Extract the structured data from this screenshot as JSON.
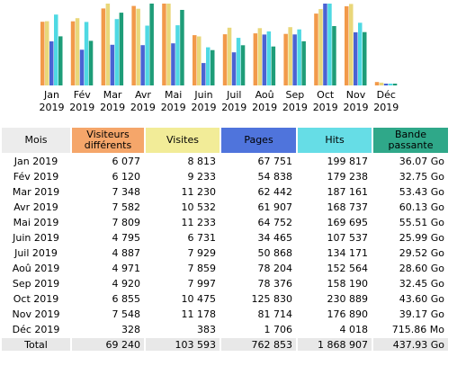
{
  "chart_data": {
    "type": "bar",
    "categories": [
      {
        "month": "Jan",
        "year": "2019"
      },
      {
        "month": "Fév",
        "year": "2019"
      },
      {
        "month": "Mar",
        "year": "2019"
      },
      {
        "month": "Avr",
        "year": "2019"
      },
      {
        "month": "Mai",
        "year": "2019"
      },
      {
        "month": "Juin",
        "year": "2019"
      },
      {
        "month": "Juil",
        "year": "2019"
      },
      {
        "month": "Aoû",
        "year": "2019"
      },
      {
        "month": "Sep",
        "year": "2019"
      },
      {
        "month": "Oct",
        "year": "2019"
      },
      {
        "month": "Nov",
        "year": "2019"
      },
      {
        "month": "Déc",
        "year": "2019"
      }
    ],
    "series": [
      {
        "color": "#f29a4a",
        "values": [
          6077,
          6120,
          7348,
          7582,
          7809,
          4795,
          4887,
          4971,
          4920,
          6855,
          7548,
          328
        ]
      },
      {
        "color": "#e9d77a",
        "values": [
          8813,
          9233,
          11230,
          10532,
          11233,
          6731,
          7929,
          7859,
          7997,
          10475,
          11178,
          383
        ]
      },
      {
        "color": "#4a63d3",
        "values": [
          67751,
          54838,
          62442,
          61907,
          64752,
          34465,
          50868,
          78204,
          78376,
          125830,
          81714,
          1706
        ]
      },
      {
        "color": "#4fd9e3",
        "values": [
          199817,
          179238,
          187161,
          168737,
          169695,
          107537,
          134171,
          152564,
          158190,
          230889,
          176890,
          4018
        ]
      },
      {
        "color": "#1e9d78",
        "values": [
          36.07,
          32.75,
          53.43,
          60.13,
          55.51,
          25.99,
          29.52,
          28.6,
          32.45,
          43.6,
          39.17,
          0.7
        ]
      }
    ]
  },
  "table": {
    "headers": {
      "mois": "Mois",
      "visiteurs": [
        "Visiteurs",
        "différents"
      ],
      "visites": "Visites",
      "pages": "Pages",
      "hits": "Hits",
      "bande": [
        "Bande",
        "passante"
      ]
    },
    "header_colors": {
      "mois": "#ececec",
      "visiteurs": "#f5a66a",
      "visites": "#f2ec98",
      "pages": "#4f74dc",
      "hits": "#66dde6",
      "bande": "#2fa889"
    },
    "rows": [
      {
        "mois": "Jan 2019",
        "visiteurs": "6 077",
        "visites": "8 813",
        "pages": "67 751",
        "hits": "199 817",
        "bande": "36.07 Go"
      },
      {
        "mois": "Fév 2019",
        "visiteurs": "6 120",
        "visites": "9 233",
        "pages": "54 838",
        "hits": "179 238",
        "bande": "32.75 Go"
      },
      {
        "mois": "Mar 2019",
        "visiteurs": "7 348",
        "visites": "11 230",
        "pages": "62 442",
        "hits": "187 161",
        "bande": "53.43 Go"
      },
      {
        "mois": "Avr 2019",
        "visiteurs": "7 582",
        "visites": "10 532",
        "pages": "61 907",
        "hits": "168 737",
        "bande": "60.13 Go"
      },
      {
        "mois": "Mai 2019",
        "visiteurs": "7 809",
        "visites": "11 233",
        "pages": "64 752",
        "hits": "169 695",
        "bande": "55.51 Go"
      },
      {
        "mois": "Juin 2019",
        "visiteurs": "4 795",
        "visites": "6 731",
        "pages": "34 465",
        "hits": "107 537",
        "bande": "25.99 Go"
      },
      {
        "mois": "Juil 2019",
        "visiteurs": "4 887",
        "visites": "7 929",
        "pages": "50 868",
        "hits": "134 171",
        "bande": "29.52 Go"
      },
      {
        "mois": "Aoû 2019",
        "visiteurs": "4 971",
        "visites": "7 859",
        "pages": "78 204",
        "hits": "152 564",
        "bande": "28.60 Go"
      },
      {
        "mois": "Sep 2019",
        "visiteurs": "4 920",
        "visites": "7 997",
        "pages": "78 376",
        "hits": "158 190",
        "bande": "32.45 Go"
      },
      {
        "mois": "Oct 2019",
        "visiteurs": "6 855",
        "visites": "10 475",
        "pages": "125 830",
        "hits": "230 889",
        "bande": "43.60 Go"
      },
      {
        "mois": "Nov 2019",
        "visiteurs": "7 548",
        "visites": "11 178",
        "pages": "81 714",
        "hits": "176 890",
        "bande": "39.17 Go"
      },
      {
        "mois": "Déc 2019",
        "visiteurs": "328",
        "visites": "383",
        "pages": "1 706",
        "hits": "4 018",
        "bande": "715.86 Mo"
      }
    ],
    "total": {
      "mois": "Total",
      "visiteurs": "69 240",
      "visites": "103 593",
      "pages": "762 853",
      "hits": "1 868 907",
      "bande": "437.93 Go"
    }
  }
}
